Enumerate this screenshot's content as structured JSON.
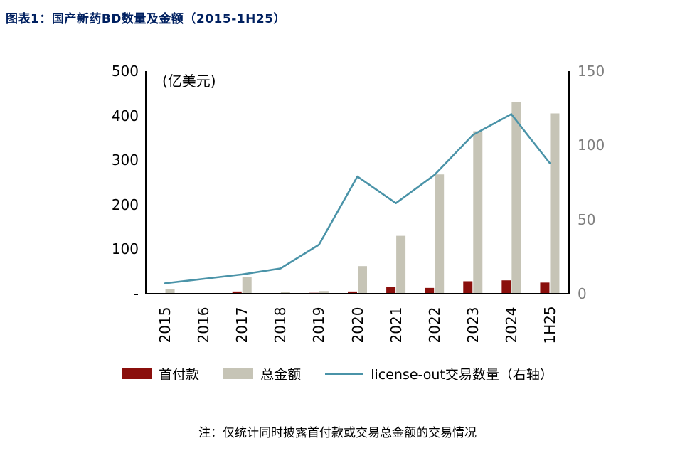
{
  "title": "图表1：国产新药BD数量及金额（2015-1H25）",
  "note": "注：仅统计同时披露首付款或交易总金额的交易情况",
  "chart_data": {
    "type": "bar+line combo",
    "unit_label": "(亿美元)",
    "categories": [
      "2015",
      "2016",
      "2017",
      "2018",
      "2019",
      "2020",
      "2021",
      "2022",
      "2023",
      "2024",
      "1H25"
    ],
    "series": [
      {
        "name": "首付款",
        "type": "bar",
        "axis": "left",
        "color": "#8a0f0c",
        "values": [
          1,
          0,
          5,
          1,
          2,
          5,
          15,
          13,
          28,
          30,
          25
        ]
      },
      {
        "name": "总金额",
        "type": "bar",
        "axis": "left",
        "color": "#c6c4b6",
        "values": [
          10,
          0,
          38,
          4,
          6,
          62,
          130,
          268,
          365,
          430,
          405
        ]
      },
      {
        "name": "license-out交易数量（右轴）",
        "type": "line",
        "axis": "right",
        "color": "#4a93a8",
        "values": [
          7,
          10,
          13,
          17,
          33,
          79,
          61,
          80,
          107,
          121,
          88
        ]
      }
    ],
    "left_axis": {
      "min": 0,
      "max": 500,
      "ticks": [
        "500",
        "400",
        "300",
        "200",
        "100",
        "-"
      ]
    },
    "right_axis": {
      "min": 0,
      "max": 150,
      "ticks": [
        "150",
        "100",
        "50",
        "0"
      ]
    },
    "legend_position": "bottom",
    "grid": false
  }
}
